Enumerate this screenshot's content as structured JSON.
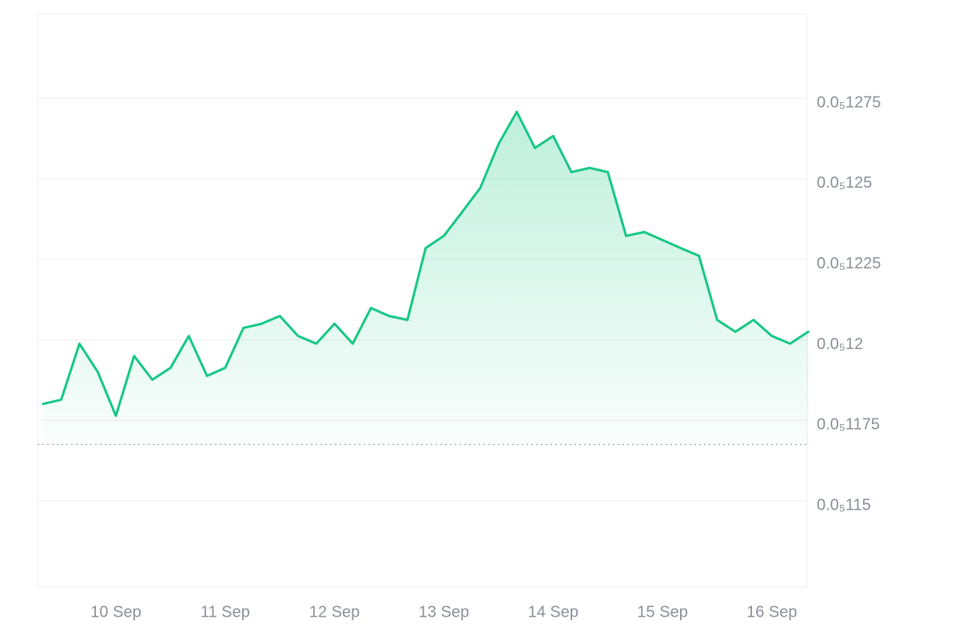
{
  "chart_data": {
    "type": "line",
    "categories": [
      null,
      null,
      null,
      null,
      "10 Sep",
      null,
      null,
      null,
      null,
      null,
      "11 Sep",
      null,
      null,
      null,
      null,
      null,
      "12 Sep",
      null,
      null,
      null,
      null,
      null,
      "13 Sep",
      null,
      null,
      null,
      null,
      null,
      "14 Sep",
      null,
      null,
      null,
      null,
      null,
      "15 Sep",
      null,
      null,
      null,
      null,
      null,
      "16 Sep",
      null,
      null
    ],
    "series": [
      {
        "color": "#16c784",
        "values": [
          1.1801e-06,
          1.1814e-06,
          1.1988e-06,
          1.1901e-06,
          1.1764e-06,
          1.195e-06,
          1.1876e-06,
          1.1913e-06,
          1.2012e-06,
          1.1888e-06,
          1.1913e-06,
          1.2037e-06,
          1.205e-06,
          1.2074e-06,
          1.2012e-06,
          1.1988e-06,
          1.205e-06,
          1.1988e-06,
          1.2099e-06,
          1.2074e-06,
          1.2062e-06,
          1.2285e-06,
          1.2323e-06,
          1.2397e-06,
          1.2472e-06,
          1.2608e-06,
          1.2708e-06,
          1.2596e-06,
          1.2633e-06,
          1.2521e-06,
          1.2534e-06,
          1.2521e-06,
          1.2323e-06,
          1.2335e-06,
          1.231e-06,
          1.2285e-06,
          1.2261e-06,
          1.2062e-06,
          1.2025e-06,
          1.2062e-06,
          1.2012e-06,
          1.1988e-06,
          1.2025e-06
        ]
      }
    ],
    "baseline": 1.1675e-06,
    "ylim": [
      1.1232e-06,
      1.3011e-06
    ],
    "yticks": [
      {
        "value": 1.275e-06,
        "label": "0.0₅1275"
      },
      {
        "value": 1.25e-06,
        "label": "0.0₅125"
      },
      {
        "value": 1.225e-06,
        "label": "0.0₅1225"
      },
      {
        "value": 1.2e-06,
        "label": "0.0₅12"
      },
      {
        "value": 1.175e-06,
        "label": "0.0₅1175"
      },
      {
        "value": 1.15e-06,
        "label": "0.0₅115"
      }
    ],
    "grid": true
  }
}
